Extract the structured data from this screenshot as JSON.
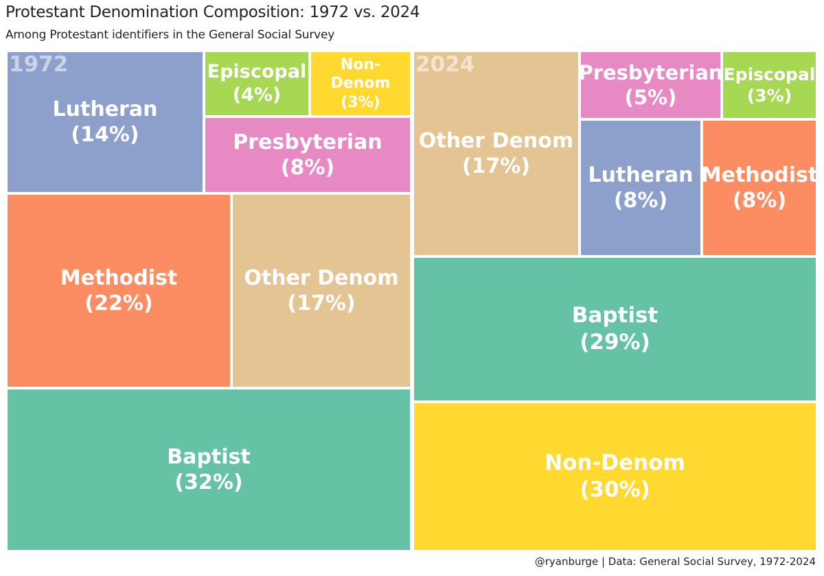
{
  "title": "Protestant Denomination Composition: 1972 vs. 2024",
  "subtitle": "Among Protestant identifiers in the General Social Survey",
  "caption": "@ryanburge | Data: General Social Survey, 1972-2024",
  "chart_data": [
    {
      "type": "treemap",
      "panel_label": "1972",
      "tiles": [
        {
          "name": "Baptist",
          "value": 32,
          "label": "Baptist\n(32%)",
          "color": "#66C2A5"
        },
        {
          "name": "Methodist",
          "value": 22,
          "label": "Methodist\n(22%)",
          "color": "#FC8D62"
        },
        {
          "name": "Other Denom",
          "value": 17,
          "label": "Other Denom\n(17%)",
          "color": "#E5C494"
        },
        {
          "name": "Lutheran",
          "value": 14,
          "label": "Lutheran\n(14%)",
          "color": "#8DA0CB"
        },
        {
          "name": "Presbyterian",
          "value": 8,
          "label": "Presbyterian\n(8%)",
          "color": "#E78AC3"
        },
        {
          "name": "Episcopal",
          "value": 4,
          "label": "Episcopal\n(4%)",
          "color": "#A6D854"
        },
        {
          "name": "Non-Denom",
          "value": 3,
          "label": "Non-\nDenom\n(3%)",
          "color": "#FFD92F"
        }
      ]
    },
    {
      "type": "treemap",
      "panel_label": "2024",
      "tiles": [
        {
          "name": "Non-Denom",
          "value": 30,
          "label": "Non-Denom\n(30%)",
          "color": "#FFD92F"
        },
        {
          "name": "Baptist",
          "value": 29,
          "label": "Baptist\n(29%)",
          "color": "#66C2A5"
        },
        {
          "name": "Other Denom",
          "value": 17,
          "label": "Other Denom\n(17%)",
          "color": "#E5C494"
        },
        {
          "name": "Lutheran",
          "value": 8,
          "label": "Lutheran\n(8%)",
          "color": "#8DA0CB"
        },
        {
          "name": "Methodist",
          "value": 8,
          "label": "Methodist\n(8%)",
          "color": "#FC8D62"
        },
        {
          "name": "Presbyterian",
          "value": 5,
          "label": "Presbyterian\n(5%)",
          "color": "#E78AC3"
        },
        {
          "name": "Episcopal",
          "value": 3,
          "label": "Episcopal\n(3%)",
          "color": "#A6D854"
        }
      ]
    }
  ]
}
